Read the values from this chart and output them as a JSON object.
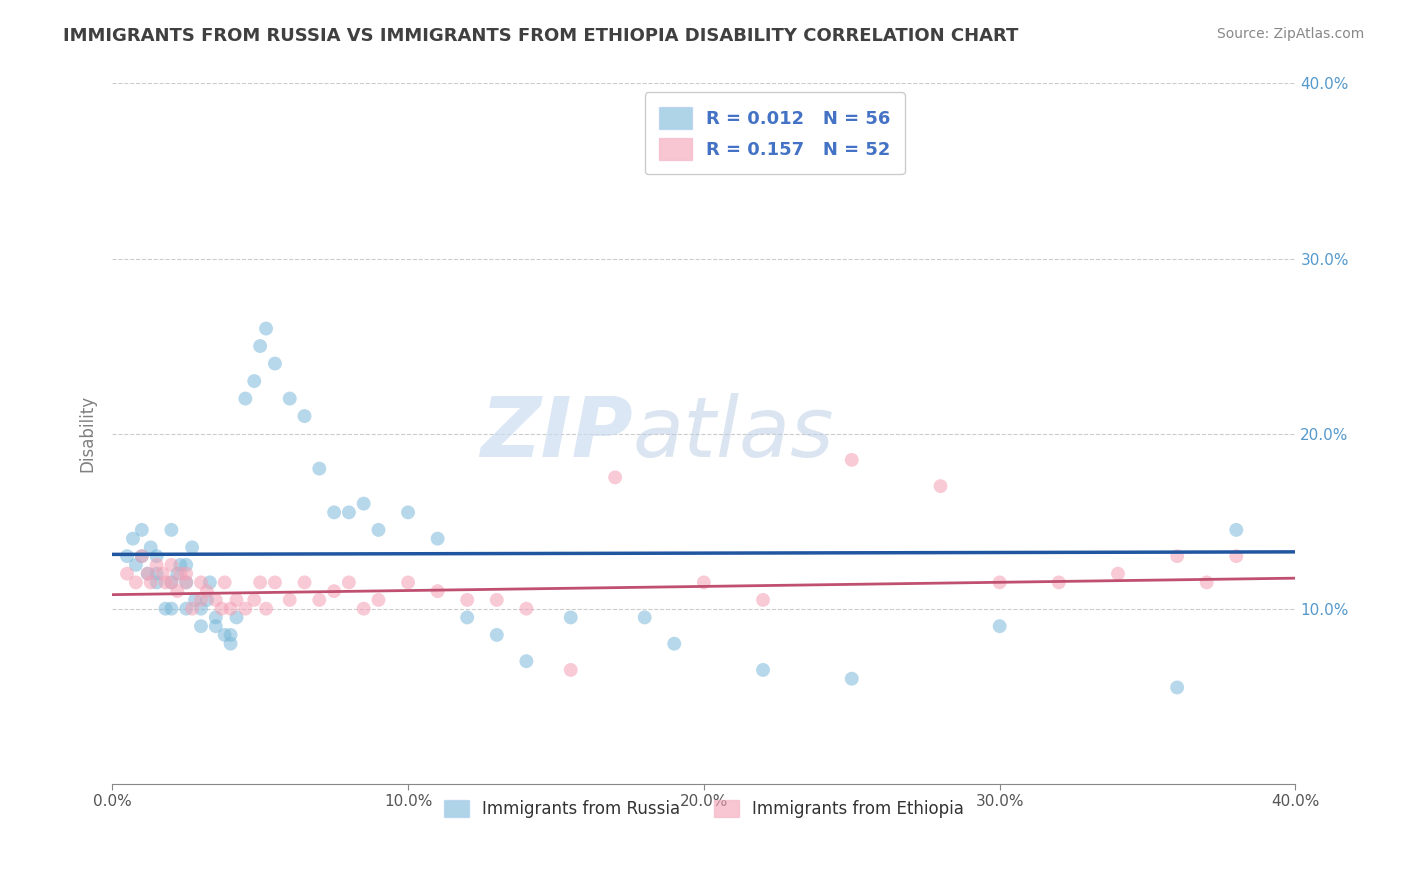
{
  "title": "IMMIGRANTS FROM RUSSIA VS IMMIGRANTS FROM ETHIOPIA DISABILITY CORRELATION CHART",
  "source": "Source: ZipAtlas.com",
  "ylabel": "Disability",
  "xlim": [
    0.0,
    0.4
  ],
  "ylim": [
    0.0,
    0.4
  ],
  "xtick_vals": [
    0.0,
    0.1,
    0.2,
    0.3,
    0.4
  ],
  "ytick_vals": [
    0.1,
    0.2,
    0.3,
    0.4
  ],
  "grid_color": "#cccccc",
  "background_color": "#ffffff",
  "russia_color": "#7ab8d9",
  "ethiopia_color": "#f4a0b5",
  "russia_line_color": "#2055a0",
  "ethiopia_line_color": "#c05070",
  "russia_R": 0.012,
  "russia_N": 56,
  "ethiopia_R": 0.157,
  "ethiopia_N": 52,
  "russia_scatter_x": [
    0.005,
    0.007,
    0.008,
    0.01,
    0.01,
    0.012,
    0.013,
    0.015,
    0.015,
    0.015,
    0.018,
    0.02,
    0.02,
    0.02,
    0.022,
    0.023,
    0.025,
    0.025,
    0.025,
    0.027,
    0.028,
    0.03,
    0.03,
    0.032,
    0.033,
    0.035,
    0.035,
    0.038,
    0.04,
    0.04,
    0.042,
    0.045,
    0.048,
    0.05,
    0.052,
    0.055,
    0.06,
    0.065,
    0.07,
    0.075,
    0.08,
    0.085,
    0.09,
    0.1,
    0.11,
    0.12,
    0.13,
    0.14,
    0.155,
    0.18,
    0.19,
    0.22,
    0.25,
    0.3,
    0.36,
    0.38
  ],
  "russia_scatter_y": [
    0.13,
    0.14,
    0.125,
    0.145,
    0.13,
    0.12,
    0.135,
    0.13,
    0.12,
    0.115,
    0.1,
    0.115,
    0.1,
    0.145,
    0.12,
    0.125,
    0.115,
    0.1,
    0.125,
    0.135,
    0.105,
    0.09,
    0.1,
    0.105,
    0.115,
    0.09,
    0.095,
    0.085,
    0.08,
    0.085,
    0.095,
    0.22,
    0.23,
    0.25,
    0.26,
    0.24,
    0.22,
    0.21,
    0.18,
    0.155,
    0.155,
    0.16,
    0.145,
    0.155,
    0.14,
    0.095,
    0.085,
    0.07,
    0.095,
    0.095,
    0.08,
    0.065,
    0.06,
    0.09,
    0.055,
    0.145
  ],
  "ethiopia_scatter_x": [
    0.005,
    0.008,
    0.01,
    0.012,
    0.013,
    0.015,
    0.017,
    0.018,
    0.02,
    0.02,
    0.022,
    0.023,
    0.025,
    0.025,
    0.027,
    0.03,
    0.03,
    0.032,
    0.035,
    0.037,
    0.038,
    0.04,
    0.042,
    0.045,
    0.048,
    0.05,
    0.052,
    0.055,
    0.06,
    0.065,
    0.07,
    0.075,
    0.08,
    0.085,
    0.09,
    0.1,
    0.11,
    0.12,
    0.13,
    0.14,
    0.155,
    0.17,
    0.2,
    0.22,
    0.25,
    0.28,
    0.3,
    0.32,
    0.34,
    0.36,
    0.37,
    0.38
  ],
  "ethiopia_scatter_y": [
    0.12,
    0.115,
    0.13,
    0.12,
    0.115,
    0.125,
    0.12,
    0.115,
    0.115,
    0.125,
    0.11,
    0.12,
    0.115,
    0.12,
    0.1,
    0.115,
    0.105,
    0.11,
    0.105,
    0.1,
    0.115,
    0.1,
    0.105,
    0.1,
    0.105,
    0.115,
    0.1,
    0.115,
    0.105,
    0.115,
    0.105,
    0.11,
    0.115,
    0.1,
    0.105,
    0.115,
    0.11,
    0.105,
    0.105,
    0.1,
    0.065,
    0.175,
    0.115,
    0.105,
    0.185,
    0.17,
    0.115,
    0.115,
    0.12,
    0.13,
    0.115,
    0.13
  ],
  "watermark_zip": "ZIP",
  "watermark_atlas": "atlas",
  "legend_R_color": "#4472c4",
  "title_color": "#404040",
  "axis_label_color": "#808080",
  "tick_label_color": "#5599cc"
}
